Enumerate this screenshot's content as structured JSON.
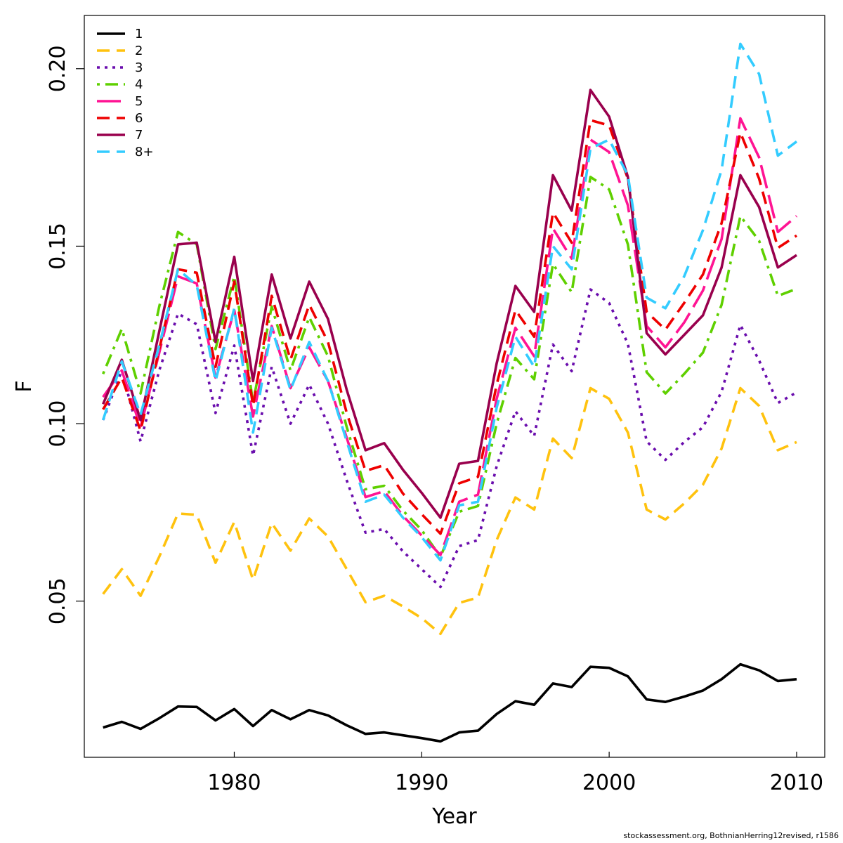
{
  "chart_data": {
    "type": "line",
    "title": "",
    "xlabel": "Year",
    "ylabel": "F",
    "xlim": [
      1972,
      2011.5
    ],
    "ylim": [
      0.006,
      0.215
    ],
    "x_ticks": [
      1980,
      1990,
      2000,
      2010
    ],
    "y_ticks": [
      0.05,
      0.1,
      0.15,
      0.2
    ],
    "y_tick_labels": [
      "0.05",
      "0.10",
      "0.15",
      "0.20"
    ],
    "grid": false,
    "legend_position": "top-left",
    "x": [
      1973,
      1974,
      1975,
      1976,
      1977,
      1978,
      1979,
      1980,
      1981,
      1982,
      1983,
      1984,
      1985,
      1986,
      1987,
      1988,
      1989,
      1990,
      1991,
      1992,
      1993,
      1994,
      1995,
      1996,
      1997,
      1998,
      1999,
      2000,
      2001,
      2002,
      2003,
      2004,
      2005,
      2006,
      2007,
      2008,
      2009,
      2010
    ],
    "series": [
      {
        "name": "1",
        "color": "#000000",
        "dash": "solid",
        "values": [
          0.0144,
          0.016,
          0.014,
          0.017,
          0.0203,
          0.0202,
          0.0164,
          0.0196,
          0.0148,
          0.0193,
          0.0167,
          0.0193,
          0.0178,
          0.015,
          0.0126,
          0.013,
          0.0122,
          0.0114,
          0.0105,
          0.013,
          0.0135,
          0.0182,
          0.0218,
          0.0208,
          0.0268,
          0.0258,
          0.0315,
          0.0312,
          0.0288,
          0.0223,
          0.0216,
          0.0231,
          0.0248,
          0.028,
          0.0322,
          0.0305,
          0.0275,
          0.028
        ]
      },
      {
        "name": "2",
        "color": "#FFC20E",
        "dash": "dashed",
        "values": [
          0.052,
          0.059,
          0.0515,
          0.0625,
          0.0747,
          0.0743,
          0.0608,
          0.0723,
          0.056,
          0.072,
          0.0642,
          0.0733,
          0.0682,
          0.059,
          0.0497,
          0.0515,
          0.0485,
          0.0452,
          0.0408,
          0.0495,
          0.051,
          0.0672,
          0.0792,
          0.0758,
          0.0958,
          0.0903,
          0.11,
          0.107,
          0.0975,
          0.0758,
          0.073,
          0.0775,
          0.0828,
          0.093,
          0.11,
          0.105,
          0.0925,
          0.0948
        ]
      },
      {
        "name": "3",
        "color": "#6A0DAD",
        "dash": "dotted",
        "values": [
          0.101,
          0.115,
          0.095,
          0.115,
          0.131,
          0.128,
          0.103,
          0.122,
          0.091,
          0.116,
          0.1,
          0.111,
          0.1,
          0.084,
          0.0693,
          0.0703,
          0.064,
          0.059,
          0.054,
          0.0655,
          0.0672,
          0.088,
          0.1035,
          0.0965,
          0.1223,
          0.1148,
          0.1378,
          0.134,
          0.1225,
          0.095,
          0.0898,
          0.0948,
          0.099,
          0.109,
          0.1278,
          0.1178,
          0.1058,
          0.1088
        ]
      },
      {
        "name": "4",
        "color": "#5FD000",
        "dash": "dotdash",
        "values": [
          0.114,
          0.1267,
          0.1085,
          0.133,
          0.154,
          0.1505,
          0.121,
          0.1415,
          0.106,
          0.133,
          0.115,
          0.13,
          0.119,
          0.099,
          0.0815,
          0.0825,
          0.0755,
          0.07,
          0.0625,
          0.0752,
          0.0768,
          0.1,
          0.1185,
          0.1125,
          0.145,
          0.137,
          0.1695,
          0.166,
          0.1505,
          0.1145,
          0.1085,
          0.114,
          0.12,
          0.1335,
          0.1585,
          0.1515,
          0.136,
          0.138
        ]
      },
      {
        "name": "5",
        "color": "#FF1493",
        "dash": "longdash",
        "values": [
          0.1075,
          0.115,
          0.099,
          0.12,
          0.1415,
          0.1395,
          0.113,
          0.132,
          0.102,
          0.1275,
          0.11,
          0.1215,
          0.112,
          0.096,
          0.0793,
          0.081,
          0.074,
          0.0685,
          0.063,
          0.078,
          0.08,
          0.107,
          0.127,
          0.119,
          0.155,
          0.1465,
          0.18,
          0.1765,
          0.1615,
          0.1275,
          0.1215,
          0.1285,
          0.1375,
          0.152,
          0.186,
          0.175,
          0.154,
          0.1585
        ]
      },
      {
        "name": "6",
        "color": "#EE0000",
        "dash": "dashed",
        "values": [
          0.104,
          0.113,
          0.098,
          0.121,
          0.1435,
          0.1425,
          0.116,
          0.14,
          0.105,
          0.136,
          0.118,
          0.1335,
          0.123,
          0.103,
          0.0867,
          0.0883,
          0.0803,
          0.0745,
          0.069,
          0.0832,
          0.085,
          0.111,
          0.132,
          0.1245,
          0.1595,
          0.151,
          0.1855,
          0.184,
          0.169,
          0.1315,
          0.1265,
          0.134,
          0.142,
          0.1565,
          0.182,
          0.169,
          0.1495,
          0.153
        ]
      },
      {
        "name": "7",
        "color": "#99004D",
        "dash": "solid",
        "values": [
          0.1055,
          0.118,
          0.101,
          0.126,
          0.1505,
          0.151,
          0.123,
          0.147,
          0.112,
          0.142,
          0.124,
          0.14,
          0.1295,
          0.1095,
          0.0925,
          0.0945,
          0.087,
          0.0805,
          0.0735,
          0.0887,
          0.0895,
          0.117,
          0.1388,
          0.1315,
          0.17,
          0.16,
          0.194,
          0.1865,
          0.1695,
          0.1255,
          0.1195,
          0.125,
          0.1305,
          0.144,
          0.17,
          0.161,
          0.144,
          0.1475
        ]
      },
      {
        "name": "8+",
        "color": "#33CCFF",
        "dash": "dashed",
        "values": [
          0.101,
          0.1175,
          0.1025,
          0.122,
          0.1435,
          0.139,
          0.112,
          0.1325,
          0.0975,
          0.127,
          0.1095,
          0.123,
          0.112,
          0.095,
          0.078,
          0.08,
          0.0735,
          0.068,
          0.0615,
          0.077,
          0.078,
          0.1045,
          0.1245,
          0.116,
          0.15,
          0.1435,
          0.1775,
          0.18,
          0.17,
          0.1355,
          0.1325,
          0.1415,
          0.1545,
          0.1715,
          0.207,
          0.1985,
          0.1755,
          0.1795
        ]
      }
    ]
  },
  "footer": "stockassessment.org, BothnianHerring12revised, r1586"
}
